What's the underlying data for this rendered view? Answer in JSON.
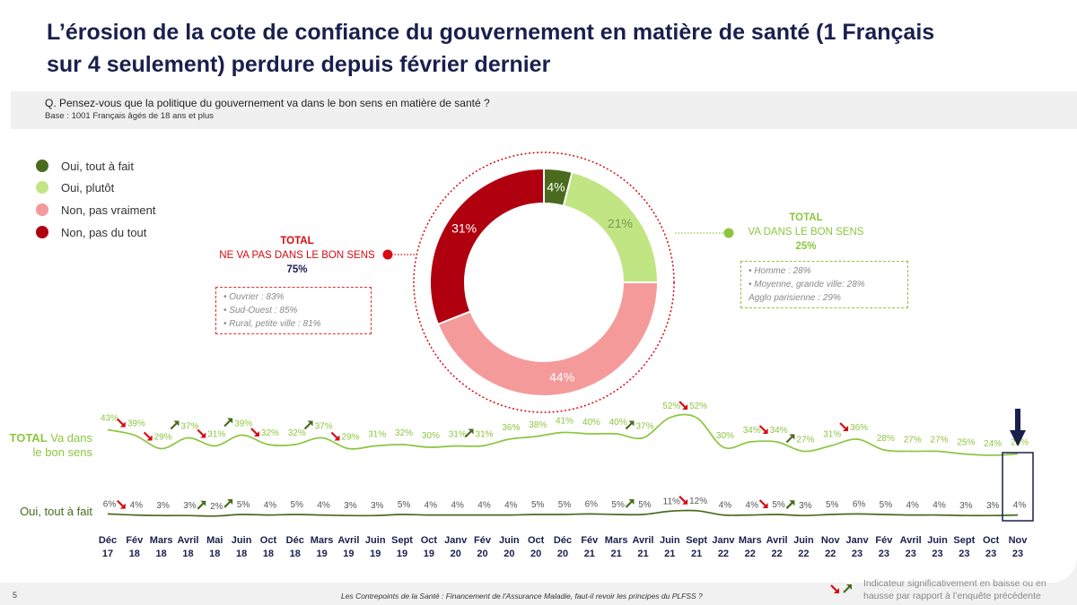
{
  "title": "L’érosion de la cote de confiance du gouvernement en matière de santé  (1 Français sur 4 seulement) perdure depuis février dernier",
  "question": "Q. Pensez-vous que la politique du gouvernement va dans le bon sens en matière de santé ?",
  "base": "Base : 1001 Français âgés de 18 ans et plus",
  "legend": [
    {
      "label": "Oui, tout à fait",
      "color": "#4a6b1e"
    },
    {
      "label": "Oui, plutôt",
      "color": "#c2e584"
    },
    {
      "label": "Non, pas vraiment",
      "color": "#f59a9a"
    },
    {
      "label": "Non, pas du tout",
      "color": "#b00010"
    }
  ],
  "callout_no": {
    "line1": "TOTAL",
    "line2": "NE VA PAS DANS LE BON SENS",
    "line3": "75%",
    "color": "#d60b13"
  },
  "callout_yes": {
    "line1": "TOTAL",
    "line2": "VA DANS LE BON SENS",
    "line3": "25%",
    "color": "#8cc63f"
  },
  "box_no": [
    "• Ouvrier : 83%",
    "• Sud-Ouest : 85%",
    "• Rural, petite ville : 81%"
  ],
  "box_yes": [
    "• Homme : 28%",
    "• Moyenne, grande ville: 28%",
    "Agglo parisienne : 29%"
  ],
  "series_labels": {
    "total": "TOTAL Va dans le bon sens",
    "total_prefix": "TOTAL",
    "total_rest1": " Va dans",
    "total_rest2": "le bon sens",
    "tout": "Oui, tout à fait"
  },
  "footer": "Les Contrepoints de la Santé : Financement de l'Assurance Maladie, faut-il revoir les principes du PLFSS ?",
  "page_number": "5",
  "indicator_text": "Indicateur significativement en baisse ou en hausse par rapport à l’enquête précédente",
  "colors": {
    "navy": "#1a1f4e",
    "light_green": "#8cc63f",
    "dark_green": "#4a6b1e",
    "red": "#d60b13"
  },
  "chart_data": [
    {
      "type": "pie",
      "variant": "donut",
      "labels": [
        "Oui, tout à fait",
        "Oui, plutôt",
        "Non, pas vraiment",
        "Non, pas du tout"
      ],
      "values": [
        4,
        21,
        44,
        31
      ],
      "value_labels": [
        "4%",
        "21%",
        "44%",
        "31%"
      ],
      "colors": [
        "#4a6b1e",
        "#c2e584",
        "#f59a9a",
        "#b00010"
      ]
    },
    {
      "type": "line",
      "categories": [
        [
          "Déc",
          "17"
        ],
        [
          "Fév",
          "18"
        ],
        [
          "Mars",
          "18"
        ],
        [
          "Avril",
          "18"
        ],
        [
          "Mai",
          "18"
        ],
        [
          "Juin",
          "18"
        ],
        [
          "Oct",
          "18"
        ],
        [
          "Déc",
          "18"
        ],
        [
          "Mars",
          "19"
        ],
        [
          "Avril",
          "19"
        ],
        [
          "Juin",
          "19"
        ],
        [
          "Sept",
          "19"
        ],
        [
          "Oct",
          "19"
        ],
        [
          "Janv",
          "20"
        ],
        [
          "Fév",
          "20"
        ],
        [
          "Juin",
          "20"
        ],
        [
          "Oct",
          "20"
        ],
        [
          "Déc",
          "20"
        ],
        [
          "Fév",
          "21"
        ],
        [
          "Mars",
          "21"
        ],
        [
          "Avril",
          "21"
        ],
        [
          "Juin",
          "21"
        ],
        [
          "Sept",
          "21"
        ],
        [
          "Janv",
          "22"
        ],
        [
          "Mars",
          "22"
        ],
        [
          "Avril",
          "22"
        ],
        [
          "Juin",
          "22"
        ],
        [
          "Nov",
          "22"
        ],
        [
          "Janv",
          "23"
        ],
        [
          "Fév",
          "23"
        ],
        [
          "Avril",
          "23"
        ],
        [
          "Juin",
          "23"
        ],
        [
          "Sept",
          "23"
        ],
        [
          "Oct",
          "23"
        ],
        [
          "Nov",
          "23"
        ]
      ],
      "series": [
        {
          "name": "TOTAL Va dans le bon sens",
          "color": "#8cc63f",
          "values": [
            43,
            39,
            29,
            37,
            31,
            39,
            32,
            32,
            37,
            29,
            31,
            32,
            30,
            31,
            31,
            36,
            38,
            41,
            40,
            40,
            37,
            52,
            52,
            30,
            34,
            34,
            27,
            31,
            36,
            28,
            27,
            27,
            25,
            24,
            25
          ],
          "arrows": {
            "1": "down",
            "2": "down",
            "3": "up",
            "4": "down",
            "5": "up",
            "6": "down",
            "8": "up",
            "9": "down",
            "14": "up",
            "20": "up",
            "22": "down",
            "25": "down",
            "26": "up",
            "28": "down"
          }
        },
        {
          "name": "Oui, tout à fait",
          "color": "#4a6b1e",
          "values": [
            6,
            4,
            3,
            3,
            2,
            5,
            4,
            5,
            4,
            3,
            3,
            5,
            4,
            4,
            4,
            4,
            5,
            5,
            6,
            5,
            5,
            11,
            12,
            4,
            4,
            5,
            3,
            5,
            6,
            5,
            4,
            4,
            3,
            3,
            4
          ],
          "arrows": {
            "1": "down",
            "4": "up",
            "5": "up",
            "20": "up",
            "22": "down",
            "25": "down",
            "26": "up"
          }
        }
      ],
      "highlight_last": true
    }
  ]
}
